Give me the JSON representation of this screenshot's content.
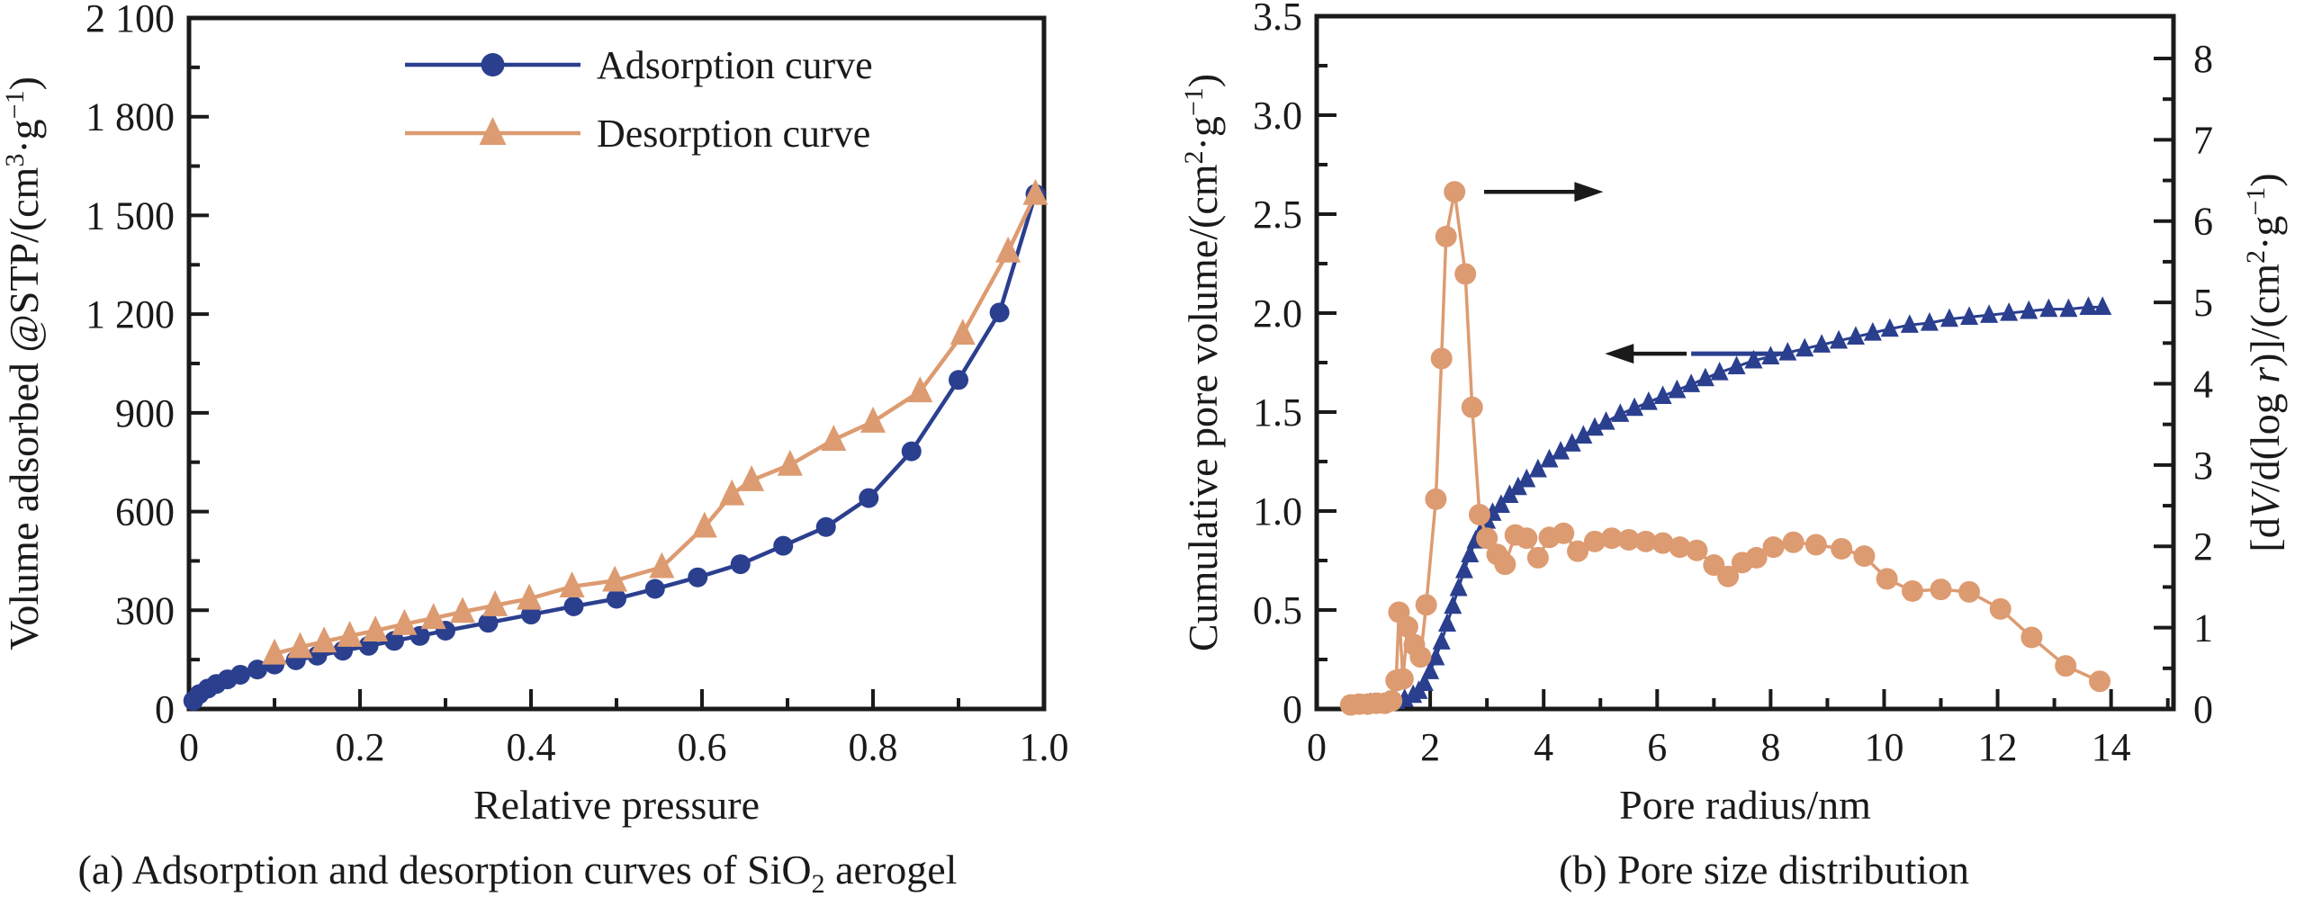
{
  "figure_colors": {
    "adsorption_blue": "#2b3f8f",
    "desorption_orange": "#dd9b71",
    "ink": "#1a1a1a",
    "background": "#ffffff"
  },
  "chart_data": [
    {
      "type": "line",
      "panel": "a",
      "caption_parts": [
        {
          "t": "(a) Adsorption and desorption curves of SiO"
        },
        {
          "t": "2",
          "sub": true
        },
        {
          "t": " aerogel"
        }
      ],
      "xlabel": "Relative pressure",
      "ylabel_parts": [
        {
          "t": "Volume adsorbed @STP/(cm"
        },
        {
          "t": "3",
          "sup": true
        },
        {
          "t": "·g"
        },
        {
          "t": "−1",
          "sup": true
        },
        {
          "t": ")"
        }
      ],
      "xlim": [
        0,
        1.0
      ],
      "ylim": [
        0,
        2100
      ],
      "grid": false,
      "legend_position": "top-center-inside",
      "xticks": {
        "values": [
          0,
          0.2,
          0.4,
          0.6,
          0.8,
          1.0
        ],
        "labels": [
          "0",
          "0.2",
          "0.4",
          "0.6",
          "0.8",
          "1.0"
        ]
      },
      "xminor": [
        0.1,
        0.3,
        0.5,
        0.7,
        0.9
      ],
      "yticks": {
        "values": [
          0,
          300,
          600,
          900,
          1200,
          1500,
          1800,
          2100
        ],
        "labels": [
          "0",
          "300",
          "600",
          "900",
          "1 200",
          "1 500",
          "1 800",
          "2 100"
        ]
      },
      "yminor": [
        150,
        450,
        750,
        1050,
        1350,
        1650,
        1950
      ],
      "legend": [
        {
          "label": "Adsorption curve",
          "color": "#2b3f8f",
          "marker": "circle"
        },
        {
          "label": "Desorption curve",
          "color": "#dd9b71",
          "marker": "triangle"
        }
      ],
      "series": [
        {
          "name": "adsorption-curve",
          "axis": "y",
          "color": "#2b3f8f",
          "marker": "circle",
          "marker_size": 11,
          "line_width": 4.5,
          "points": [
            [
              0.005,
              25
            ],
            [
              0.012,
              45
            ],
            [
              0.022,
              62
            ],
            [
              0.032,
              76
            ],
            [
              0.045,
              90
            ],
            [
              0.06,
              104
            ],
            [
              0.08,
              120
            ],
            [
              0.1,
              135
            ],
            [
              0.125,
              148
            ],
            [
              0.15,
              162
            ],
            [
              0.18,
              177
            ],
            [
              0.21,
              192
            ],
            [
              0.24,
              207
            ],
            [
              0.27,
              222
            ],
            [
              0.3,
              238
            ],
            [
              0.35,
              262
            ],
            [
              0.4,
              287
            ],
            [
              0.45,
              312
            ],
            [
              0.5,
              335
            ],
            [
              0.545,
              365
            ],
            [
              0.595,
              400
            ],
            [
              0.645,
              440
            ],
            [
              0.695,
              496
            ],
            [
              0.745,
              553
            ],
            [
              0.795,
              641
            ],
            [
              0.845,
              783
            ],
            [
              0.9,
              1000
            ],
            [
              0.948,
              1205
            ],
            [
              0.99,
              1565
            ]
          ]
        },
        {
          "name": "desorption-curve",
          "axis": "y",
          "color": "#dd9b71",
          "marker": "triangle",
          "marker_size": 14,
          "line_width": 4.5,
          "points": [
            [
              0.1,
              168
            ],
            [
              0.13,
              188
            ],
            [
              0.158,
              205
            ],
            [
              0.188,
              222
            ],
            [
              0.218,
              238
            ],
            [
              0.252,
              258
            ],
            [
              0.286,
              276
            ],
            [
              0.32,
              295
            ],
            [
              0.358,
              315
            ],
            [
              0.398,
              335
            ],
            [
              0.448,
              372
            ],
            [
              0.498,
              390
            ],
            [
              0.553,
              431
            ],
            [
              0.603,
              554
            ],
            [
              0.635,
              652
            ],
            [
              0.658,
              695
            ],
            [
              0.703,
              742
            ],
            [
              0.754,
              818
            ],
            [
              0.8,
              873
            ],
            [
              0.855,
              965
            ],
            [
              0.905,
              1140
            ],
            [
              0.958,
              1390
            ],
            [
              0.99,
              1565
            ]
          ]
        }
      ]
    },
    {
      "type": "line",
      "panel": "b",
      "caption_parts": [
        {
          "t": "(b) Pore size distribution"
        }
      ],
      "xlabel": "Pore radius/nm",
      "ylabel_parts": [
        {
          "t": "Cumulative pore volume/(cm"
        },
        {
          "t": "2",
          "sup": true
        },
        {
          "t": "·g"
        },
        {
          "t": "−1",
          "sup": true
        },
        {
          "t": ")"
        }
      ],
      "y2label_parts": [
        {
          "t": "[d"
        },
        {
          "t": "V",
          "i": true
        },
        {
          "t": "/d(log "
        },
        {
          "t": "r",
          "i": true
        },
        {
          "t": ")]/(cm"
        },
        {
          "t": "2",
          "sup": true
        },
        {
          "t": "·g"
        },
        {
          "t": "−1",
          "sup": true
        },
        {
          "t": ")"
        }
      ],
      "xlim": [
        0,
        15.1
      ],
      "ylim": [
        0,
        3.5
      ],
      "y2lim": [
        0,
        8.52
      ],
      "grid": false,
      "xticks": {
        "values": [
          0,
          2,
          4,
          6,
          8,
          10,
          12,
          14
        ],
        "labels": [
          "0",
          "2",
          "4",
          "6",
          "8",
          "10",
          "12",
          "14"
        ]
      },
      "xminor": [
        1,
        3,
        5,
        7,
        9,
        11,
        13,
        15
      ],
      "yticks": {
        "values": [
          0,
          0.5,
          1.0,
          1.5,
          2.0,
          2.5,
          3.0,
          3.5
        ],
        "labels": [
          "0",
          "0.5",
          "1.0",
          "1.5",
          "2.0",
          "2.5",
          "3.0",
          "3.5"
        ]
      },
      "yminor": [
        0.25,
        0.75,
        1.25,
        1.75,
        2.25,
        2.75,
        3.25
      ],
      "y2ticks": {
        "values": [
          0,
          1,
          2,
          3,
          4,
          5,
          6,
          7,
          8
        ],
        "labels": [
          "0",
          "1",
          "2",
          "3",
          "4",
          "5",
          "6",
          "7",
          "8"
        ]
      },
      "y2minor": [
        0.5,
        1.5,
        2.5,
        3.5,
        4.5,
        5.5,
        6.5,
        7.5
      ],
      "series": [
        {
          "name": "cumulative-pore-volume",
          "axis": "y",
          "color": "#2b3f8f",
          "marker": "triangle",
          "marker_size": 10,
          "line_width": 3,
          "points": [
            [
              0.65,
              0.02
            ],
            [
              0.8,
              0.02
            ],
            [
              0.95,
              0.03
            ],
            [
              1.1,
              0.03
            ],
            [
              1.25,
              0.04
            ],
            [
              1.4,
              0.04
            ],
            [
              1.55,
              0.05
            ],
            [
              1.7,
              0.07
            ],
            [
              1.8,
              0.09
            ],
            [
              1.9,
              0.13
            ],
            [
              2.0,
              0.19
            ],
            [
              2.1,
              0.26
            ],
            [
              2.2,
              0.34
            ],
            [
              2.3,
              0.43
            ],
            [
              2.4,
              0.52
            ],
            [
              2.5,
              0.61
            ],
            [
              2.6,
              0.7
            ],
            [
              2.7,
              0.78
            ],
            [
              2.8,
              0.85
            ],
            [
              2.9,
              0.9
            ],
            [
              3.0,
              0.95
            ],
            [
              3.1,
              0.99
            ],
            [
              3.25,
              1.03
            ],
            [
              3.4,
              1.08
            ],
            [
              3.55,
              1.12
            ],
            [
              3.7,
              1.16
            ],
            [
              3.9,
              1.21
            ],
            [
              4.1,
              1.26
            ],
            [
              4.3,
              1.3
            ],
            [
              4.5,
              1.34
            ],
            [
              4.7,
              1.38
            ],
            [
              4.9,
              1.42
            ],
            [
              5.1,
              1.45
            ],
            [
              5.35,
              1.49
            ],
            [
              5.6,
              1.52
            ],
            [
              5.85,
              1.55
            ],
            [
              6.1,
              1.58
            ],
            [
              6.35,
              1.61
            ],
            [
              6.6,
              1.64
            ],
            [
              6.85,
              1.67
            ],
            [
              7.1,
              1.7
            ],
            [
              7.4,
              1.73
            ],
            [
              7.7,
              1.76
            ],
            [
              8.0,
              1.78
            ],
            [
              8.3,
              1.8
            ],
            [
              8.6,
              1.82
            ],
            [
              8.9,
              1.84
            ],
            [
              9.2,
              1.86
            ],
            [
              9.5,
              1.88
            ],
            [
              9.8,
              1.9
            ],
            [
              10.1,
              1.92
            ],
            [
              10.45,
              1.94
            ],
            [
              10.8,
              1.95
            ],
            [
              11.15,
              1.97
            ],
            [
              11.5,
              1.98
            ],
            [
              11.85,
              1.99
            ],
            [
              12.2,
              2.0
            ],
            [
              12.55,
              2.01
            ],
            [
              12.9,
              2.02
            ],
            [
              13.25,
              2.02
            ],
            [
              13.6,
              2.03
            ],
            [
              13.85,
              2.03
            ]
          ]
        },
        {
          "name": "dv-dlogr-distribution",
          "axis": "y2",
          "color": "#dd9b71",
          "marker": "circle",
          "marker_size": 12,
          "line_width": 3.5,
          "points": [
            [
              0.6,
              0.05
            ],
            [
              0.75,
              0.06
            ],
            [
              0.9,
              0.06
            ],
            [
              1.05,
              0.07
            ],
            [
              1.2,
              0.07
            ],
            [
              1.32,
              0.1
            ],
            [
              1.4,
              0.35
            ],
            [
              1.45,
              1.19
            ],
            [
              1.52,
              0.37
            ],
            [
              1.6,
              1.01
            ],
            [
              1.72,
              0.79
            ],
            [
              1.83,
              0.64
            ],
            [
              1.93,
              1.28
            ],
            [
              2.1,
              2.58
            ],
            [
              2.2,
              4.31
            ],
            [
              2.28,
              5.81
            ],
            [
              2.43,
              6.36
            ],
            [
              2.62,
              5.35
            ],
            [
              2.74,
              3.71
            ],
            [
              2.87,
              2.39
            ],
            [
              3.0,
              2.1
            ],
            [
              3.18,
              1.9
            ],
            [
              3.32,
              1.78
            ],
            [
              3.5,
              2.14
            ],
            [
              3.7,
              2.1
            ],
            [
              3.9,
              1.86
            ],
            [
              4.1,
              2.11
            ],
            [
              4.35,
              2.16
            ],
            [
              4.6,
              1.94
            ],
            [
              4.9,
              2.06
            ],
            [
              5.2,
              2.1
            ],
            [
              5.5,
              2.08
            ],
            [
              5.8,
              2.06
            ],
            [
              6.1,
              2.04
            ],
            [
              6.4,
              1.99
            ],
            [
              6.7,
              1.95
            ],
            [
              7.0,
              1.77
            ],
            [
              7.25,
              1.63
            ],
            [
              7.5,
              1.8
            ],
            [
              7.75,
              1.86
            ],
            [
              8.05,
              1.99
            ],
            [
              8.4,
              2.05
            ],
            [
              8.8,
              2.02
            ],
            [
              9.25,
              1.97
            ],
            [
              9.65,
              1.88
            ],
            [
              10.05,
              1.6
            ],
            [
              10.5,
              1.45
            ],
            [
              11.0,
              1.47
            ],
            [
              11.5,
              1.44
            ],
            [
              12.05,
              1.23
            ],
            [
              12.6,
              0.88
            ],
            [
              13.2,
              0.53
            ],
            [
              13.8,
              0.34
            ]
          ]
        }
      ],
      "annotations": [
        {
          "type": "arrow",
          "name": "arrow-to-right-axis",
          "x_from": 2.95,
          "x_to": 5.05,
          "value": 6.36,
          "axis": "y2",
          "color": "#1a1a1a"
        },
        {
          "type": "arrow",
          "name": "arrow-to-left-axis",
          "x_from": 6.52,
          "x_to": 5.08,
          "value": 1.795,
          "axis": "y",
          "color": "#1a1a1a"
        },
        {
          "type": "line",
          "name": "blue-anchor-dash",
          "x_from": 6.6,
          "x_to": 8.3,
          "value": 1.795,
          "axis": "y",
          "color": "#2b3f8f"
        }
      ]
    }
  ]
}
